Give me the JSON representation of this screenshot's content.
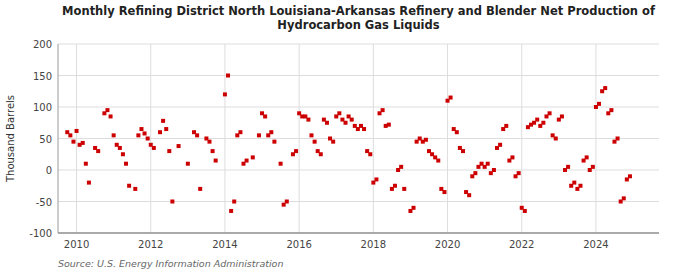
{
  "chart_data": {
    "type": "scatter",
    "title": "Monthly Refining District North Louisiana-Arkansas Refinery and Blender Net Production of\nHydrocarbon Gas Liquids",
    "ylabel": "Thousand Barrels",
    "source": "Source: U.S. Energy Information Administration",
    "color": "#cc0000",
    "marker": "square",
    "grid": true,
    "xlim": [
      2009.5,
      2025.7
    ],
    "xticks": [
      2010,
      2012,
      2014,
      2016,
      2018,
      2020,
      2022,
      2024
    ],
    "ylim": [
      -100,
      200
    ],
    "yticks": [
      -100,
      -50,
      0,
      50,
      100,
      150,
      200
    ],
    "x": [
      2009.75,
      2009.833,
      2009.917,
      2010.0,
      2010.083,
      2010.167,
      2010.25,
      2010.333,
      2010.5,
      2010.583,
      2010.75,
      2010.833,
      2010.917,
      2011.0,
      2011.083,
      2011.167,
      2011.25,
      2011.333,
      2011.417,
      2011.583,
      2011.667,
      2011.75,
      2011.833,
      2011.917,
      2012.0,
      2012.083,
      2012.25,
      2012.333,
      2012.417,
      2012.5,
      2012.583,
      2012.75,
      2013.0,
      2013.167,
      2013.25,
      2013.333,
      2013.5,
      2013.583,
      2013.667,
      2013.75,
      2014.0,
      2014.083,
      2014.167,
      2014.25,
      2014.333,
      2014.417,
      2014.5,
      2014.583,
      2014.75,
      2014.917,
      2015.0,
      2015.083,
      2015.167,
      2015.25,
      2015.333,
      2015.5,
      2015.583,
      2015.667,
      2015.833,
      2015.917,
      2016.0,
      2016.083,
      2016.167,
      2016.25,
      2016.333,
      2016.417,
      2016.5,
      2016.583,
      2016.667,
      2016.75,
      2016.833,
      2016.917,
      2017.0,
      2017.083,
      2017.167,
      2017.25,
      2017.333,
      2017.417,
      2017.5,
      2017.583,
      2017.667,
      2017.75,
      2017.833,
      2017.917,
      2018.0,
      2018.083,
      2018.167,
      2018.25,
      2018.333,
      2018.417,
      2018.5,
      2018.583,
      2018.667,
      2018.75,
      2018.833,
      2019.0,
      2019.083,
      2019.167,
      2019.25,
      2019.333,
      2019.417,
      2019.5,
      2019.583,
      2019.667,
      2019.75,
      2019.833,
      2019.917,
      2020.0,
      2020.083,
      2020.167,
      2020.25,
      2020.333,
      2020.417,
      2020.5,
      2020.583,
      2020.667,
      2020.75,
      2020.833,
      2020.917,
      2021.0,
      2021.083,
      2021.167,
      2021.25,
      2021.333,
      2021.417,
      2021.5,
      2021.583,
      2021.667,
      2021.75,
      2021.833,
      2021.917,
      2022.0,
      2022.083,
      2022.167,
      2022.25,
      2022.333,
      2022.417,
      2022.5,
      2022.583,
      2022.667,
      2022.75,
      2022.833,
      2022.917,
      2023.0,
      2023.083,
      2023.167,
      2023.25,
      2023.333,
      2023.417,
      2023.5,
      2023.583,
      2023.667,
      2023.75,
      2023.833,
      2023.917,
      2024.0,
      2024.083,
      2024.167,
      2024.25,
      2024.333,
      2024.417,
      2024.5,
      2024.583,
      2024.667,
      2024.75,
      2024.833,
      2024.917
    ],
    "values": [
      60,
      55,
      45,
      62,
      40,
      43,
      10,
      -20,
      35,
      30,
      90,
      95,
      85,
      55,
      40,
      35,
      25,
      10,
      -25,
      -30,
      55,
      65,
      58,
      50,
      40,
      35,
      60,
      78,
      65,
      30,
      -50,
      38,
      10,
      60,
      55,
      -30,
      50,
      45,
      30,
      15,
      120,
      150,
      -65,
      -50,
      55,
      60,
      10,
      15,
      20,
      55,
      90,
      85,
      55,
      60,
      45,
      10,
      -55,
      -50,
      25,
      30,
      90,
      85,
      85,
      80,
      55,
      45,
      30,
      25,
      80,
      75,
      50,
      45,
      85,
      90,
      80,
      75,
      85,
      80,
      70,
      65,
      70,
      65,
      30,
      25,
      -20,
      -15,
      90,
      95,
      70,
      72,
      -30,
      -25,
      0,
      5,
      -30,
      -65,
      -60,
      45,
      50,
      45,
      48,
      30,
      25,
      20,
      15,
      -30,
      -35,
      110,
      115,
      65,
      60,
      35,
      30,
      -35,
      -40,
      -10,
      -5,
      5,
      10,
      5,
      10,
      -5,
      0,
      35,
      40,
      65,
      70,
      15,
      20,
      -10,
      -5,
      -60,
      -65,
      68,
      72,
      75,
      80,
      70,
      75,
      85,
      90,
      55,
      50,
      80,
      85,
      0,
      5,
      -25,
      -20,
      -30,
      -25,
      15,
      20,
      0,
      5,
      100,
      105,
      125,
      130,
      90,
      95,
      45,
      50,
      -50,
      -45,
      -15,
      -10
    ]
  }
}
